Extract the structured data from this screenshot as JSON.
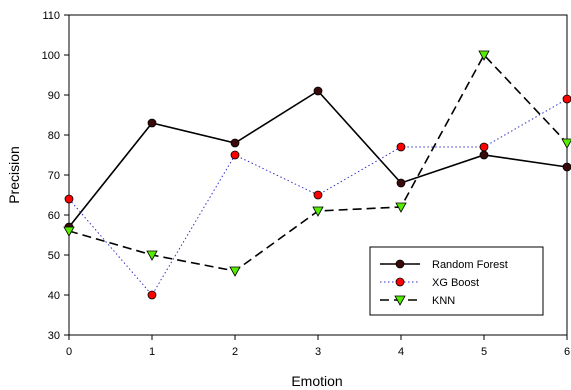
{
  "chart_data": {
    "type": "line",
    "xlabel": "Emotion",
    "ylabel": "Precision",
    "x": [
      0,
      1,
      2,
      3,
      4,
      5,
      6
    ],
    "xlim": [
      0,
      6
    ],
    "ylim": [
      30,
      110
    ],
    "xticks": [
      "0",
      "1",
      "2",
      "3",
      "4",
      "5",
      "6"
    ],
    "yticks": [
      "30",
      "40",
      "50",
      "60",
      "70",
      "80",
      "90",
      "100",
      "110"
    ],
    "grid": false,
    "legend_position": "bottom-right",
    "series": [
      {
        "name": "Random Forest",
        "values": [
          57,
          83,
          78,
          91,
          68,
          75,
          72
        ],
        "line_style": "solid",
        "marker": "circle",
        "line_color": "#000000",
        "marker_color": "#3a0a0a"
      },
      {
        "name": "XG Boost",
        "values": [
          64,
          40,
          75,
          65,
          77,
          77,
          89
        ],
        "line_style": "dotted",
        "marker": "circle",
        "line_color": "#3333cc",
        "marker_color": "#ff0000"
      },
      {
        "name": "KNN",
        "values": [
          56,
          50,
          46,
          61,
          62,
          100,
          78
        ],
        "line_style": "dashed",
        "marker": "triangle-down",
        "line_color": "#000000",
        "marker_color": "#55ee00"
      }
    ]
  }
}
